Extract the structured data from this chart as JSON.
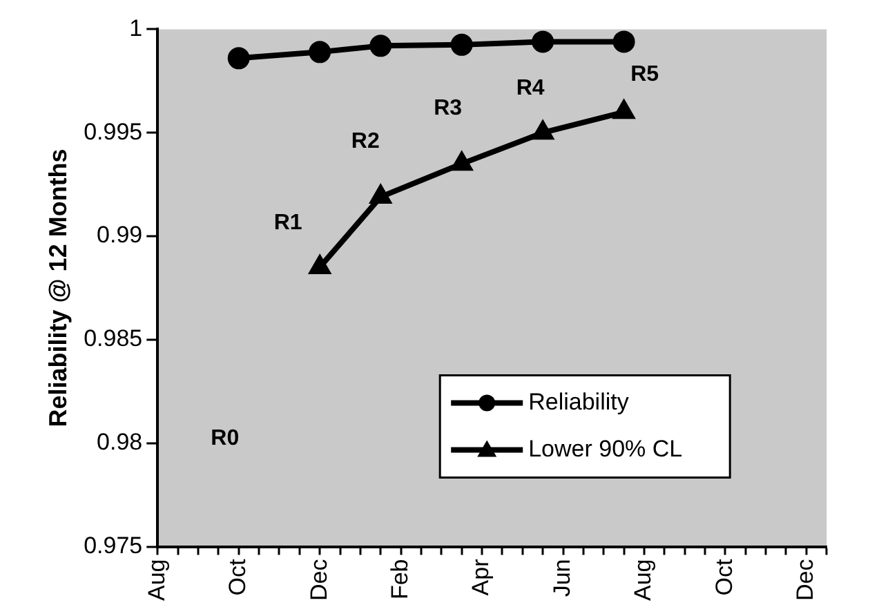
{
  "chart_data": {
    "type": "line",
    "ylabel": "Reliability @ 12 Months",
    "categories": [
      "Aug",
      null,
      null,
      null,
      "Oct",
      null,
      null,
      null,
      "Dec",
      null,
      null,
      null,
      "Feb",
      null,
      null,
      null,
      "Apr",
      null,
      null,
      null,
      "Jun",
      null,
      null,
      null,
      "Aug",
      null,
      null,
      null,
      "Oct",
      null,
      null,
      null,
      "Dec",
      null
    ],
    "series": [
      {
        "name": "Reliability",
        "color": "#000000",
        "marker": "circle",
        "values": [
          null,
          null,
          null,
          null,
          0.9986,
          null,
          null,
          null,
          0.9989,
          null,
          null,
          0.9992,
          null,
          null,
          null,
          0.99925,
          null,
          null,
          null,
          0.9994,
          null,
          null,
          null,
          0.9994,
          null,
          null,
          null,
          null,
          null,
          null,
          null,
          null,
          null,
          null
        ]
      },
      {
        "name": "Lower 90% CL",
        "color": "#000000",
        "marker": "triangle",
        "values": [
          null,
          null,
          null,
          null,
          null,
          null,
          null,
          null,
          0.9885,
          null,
          null,
          0.9919,
          null,
          null,
          null,
          0.9935,
          null,
          null,
          null,
          0.995,
          null,
          null,
          null,
          0.996,
          null,
          null,
          null,
          null,
          null,
          null,
          null,
          null,
          null,
          null
        ]
      }
    ],
    "ylim": [
      0.975,
      1
    ],
    "yticks": [
      0.975,
      0.98,
      0.985,
      0.99,
      0.995,
      1
    ],
    "grid": false,
    "legend": "bottom right",
    "line_style": "solid",
    "annotations": [
      "R0",
      "R1",
      "R2",
      "R3",
      "R4",
      "R5"
    ]
  }
}
